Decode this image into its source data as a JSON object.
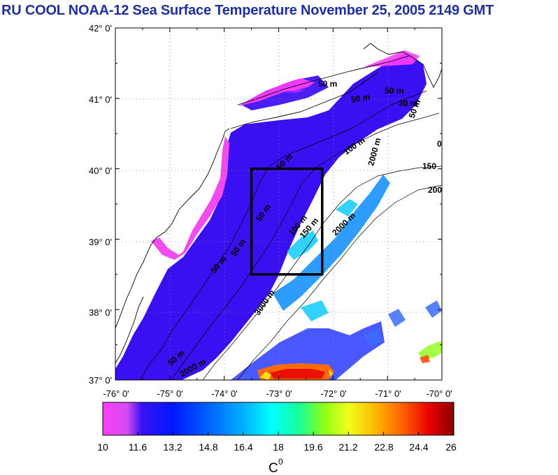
{
  "title": "RU COOL  NOAA-12 Sea Surface Temperature November 25, 2005 2149 GMT",
  "map": {
    "lon_range": [
      -76,
      -70
    ],
    "lat_range": [
      37,
      42
    ],
    "lat_labels": [
      "42° 0'",
      "41° 0'",
      "40° 0'",
      "39° 0'",
      "38° 0'",
      "37° 0'"
    ],
    "lon_labels": [
      "-76° 0'",
      "-75° 0'",
      "-74° 0'",
      "-73° 0'",
      "-72° 0'",
      "-71° 0'",
      "-70° 0'"
    ],
    "study_box": {
      "lon_min": -73.5,
      "lon_max": -72.2,
      "lat_min": 38.5,
      "lat_max": 40.0
    },
    "contour_labels": [
      "50 m",
      "50 m",
      "50 m",
      "50 m",
      "50 m",
      "50 m",
      "50 m",
      "50 m",
      "100 m",
      "150 m",
      "150",
      "200",
      "2000 m",
      "3000 m",
      "2000 m",
      "30 m",
      "50 m",
      "100 m",
      "2000 m",
      "0"
    ]
  },
  "colorbar": {
    "min": 10,
    "max": 26,
    "tick_labels": [
      "10",
      "11.6",
      "13.2",
      "14.8",
      "16.4",
      "18",
      "19.6",
      "21.2",
      "22.8",
      "24.4",
      "26"
    ],
    "unit_label": "C",
    "unit_superscript": "0",
    "colors": [
      "#ff3cff",
      "#d24cf0",
      "#3a12f6",
      "#0018ff",
      "#0060ff",
      "#00b0ff",
      "#00ffff",
      "#19ff9a",
      "#8cff19",
      "#f2ff19",
      "#ffb400",
      "#ff5a00",
      "#e80000",
      "#8a0000"
    ]
  }
}
